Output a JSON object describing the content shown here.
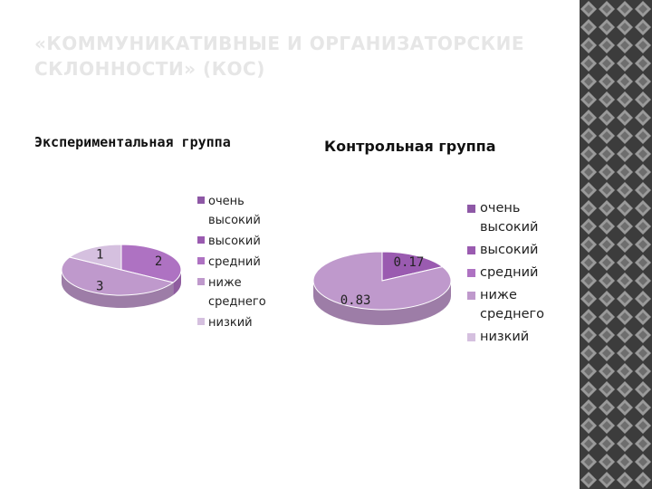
{
  "slide": {
    "title": "«КОММУНИКАТИВНЫЕ И ОРГАНИЗАТОРСКИЕ СКЛОННОСТИ» (КОС)"
  },
  "colors": {
    "very_high": "#8e58a6",
    "high": "#9a5bb0",
    "medium": "#ae72c2",
    "below_average": "#bf99cc",
    "low": "#d5c0df",
    "pattern_dark": "#3c3c3c",
    "pattern_light": "#9a9a9a"
  },
  "chart_data": [
    {
      "type": "pie",
      "title": "Экспериментальная группа",
      "categories": [
        "очень высокий",
        "высокий",
        "средний",
        "ниже среднего",
        "низкий"
      ],
      "values": [
        0,
        0,
        2,
        3,
        1
      ],
      "data_labels": [
        "",
        "",
        "2",
        "3",
        "1"
      ],
      "legend_placement": "right"
    },
    {
      "type": "pie",
      "title": "Контрольная группа",
      "categories": [
        "очень высокий",
        "высокий",
        "средний",
        "ниже среднего",
        "низкий"
      ],
      "values": [
        0,
        0.17,
        0,
        0.83,
        0
      ],
      "data_labels": [
        "",
        "0.17",
        "",
        "0.83",
        ""
      ],
      "legend_placement": "right"
    }
  ]
}
